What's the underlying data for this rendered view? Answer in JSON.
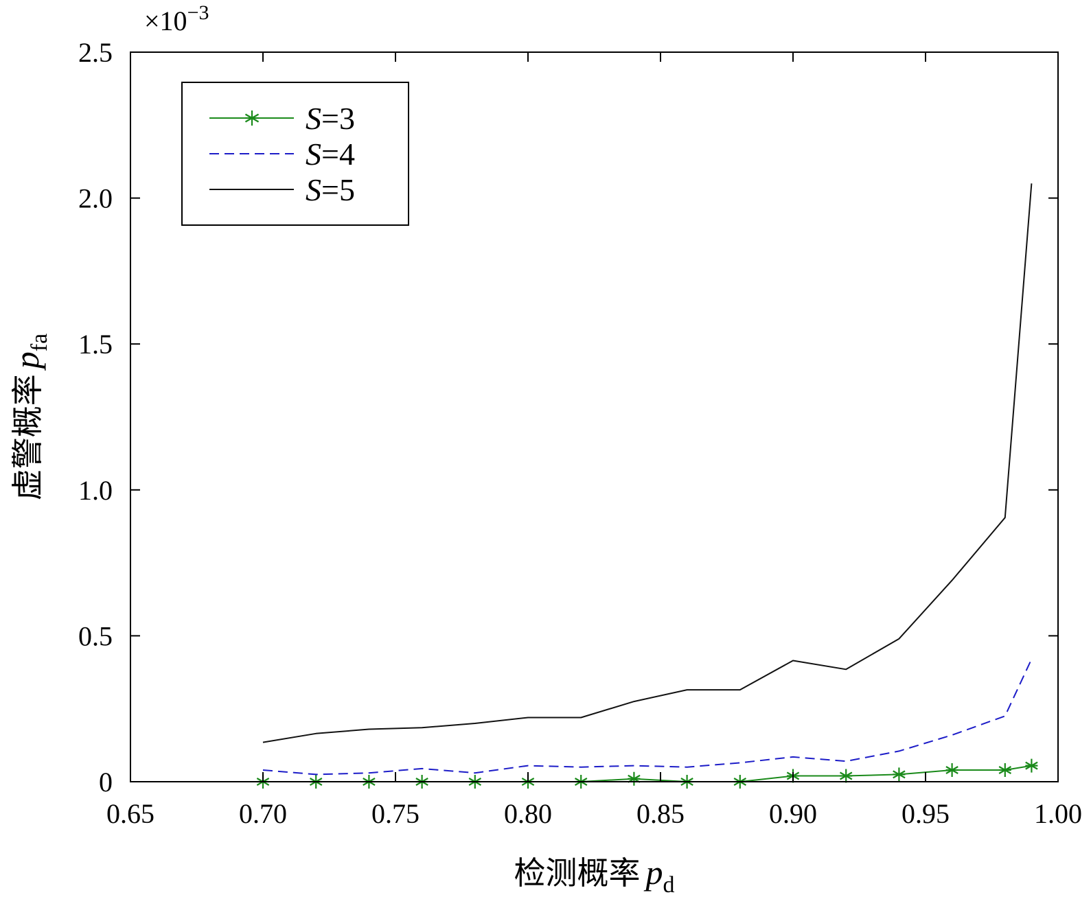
{
  "chart_data": {
    "type": "line",
    "title": "",
    "xlabel": {
      "text": "检测概率",
      "symbol": "p",
      "subscript": "d"
    },
    "ylabel": {
      "text": "虚警概率",
      "symbol": "p",
      "subscript": "fa"
    },
    "y_multiplier": {
      "prefix": "×10",
      "exponent": "−3"
    },
    "xlim": [
      0.65,
      1.0
    ],
    "ylim": [
      0,
      2.5
    ],
    "x_ticks": [
      0.65,
      0.7,
      0.75,
      0.8,
      0.85,
      0.9,
      0.95,
      1.0
    ],
    "x_tick_labels": [
      "0.65",
      "0.70",
      "0.75",
      "0.80",
      "0.85",
      "0.90",
      "0.95",
      "1.00"
    ],
    "y_ticks": [
      0,
      0.5,
      1.0,
      1.5,
      2.0,
      2.5
    ],
    "y_tick_labels": [
      "0",
      "0.5",
      "1.0",
      "1.5",
      "2.0",
      "2.5"
    ],
    "grid": false,
    "legend_position": "top-left",
    "series": [
      {
        "name": "S=3",
        "name_symbol": "S",
        "name_value": "=3",
        "color": "#1a8a1a",
        "style": "solid",
        "marker": "asterisk",
        "x": [
          0.7,
          0.72,
          0.74,
          0.76,
          0.78,
          0.8,
          0.82,
          0.84,
          0.86,
          0.88,
          0.9,
          0.92,
          0.94,
          0.96,
          0.98,
          0.99
        ],
        "y": [
          0,
          0,
          0,
          0,
          0,
          0,
          0,
          0.01,
          0,
          0,
          0.02,
          0.02,
          0.025,
          0.04,
          0.04,
          0.055
        ]
      },
      {
        "name": "S=4",
        "name_symbol": "S",
        "name_value": "=4",
        "color": "#1c1cc8",
        "style": "dashed",
        "marker": "none",
        "x": [
          0.7,
          0.72,
          0.74,
          0.76,
          0.78,
          0.8,
          0.82,
          0.84,
          0.86,
          0.88,
          0.9,
          0.92,
          0.94,
          0.96,
          0.98,
          0.99
        ],
        "y": [
          0.04,
          0.025,
          0.03,
          0.045,
          0.03,
          0.055,
          0.05,
          0.055,
          0.05,
          0.065,
          0.085,
          0.07,
          0.105,
          0.16,
          0.225,
          0.42
        ]
      },
      {
        "name": "S=5",
        "name_symbol": "S",
        "name_value": "=5",
        "color": "#111111",
        "style": "solid",
        "marker": "none",
        "x": [
          0.7,
          0.72,
          0.74,
          0.76,
          0.78,
          0.8,
          0.82,
          0.84,
          0.86,
          0.88,
          0.9,
          0.92,
          0.94,
          0.96,
          0.98,
          0.99
        ],
        "y": [
          0.135,
          0.165,
          0.18,
          0.185,
          0.2,
          0.22,
          0.22,
          0.275,
          0.315,
          0.315,
          0.415,
          0.385,
          0.49,
          0.69,
          0.905,
          2.05
        ]
      }
    ]
  }
}
